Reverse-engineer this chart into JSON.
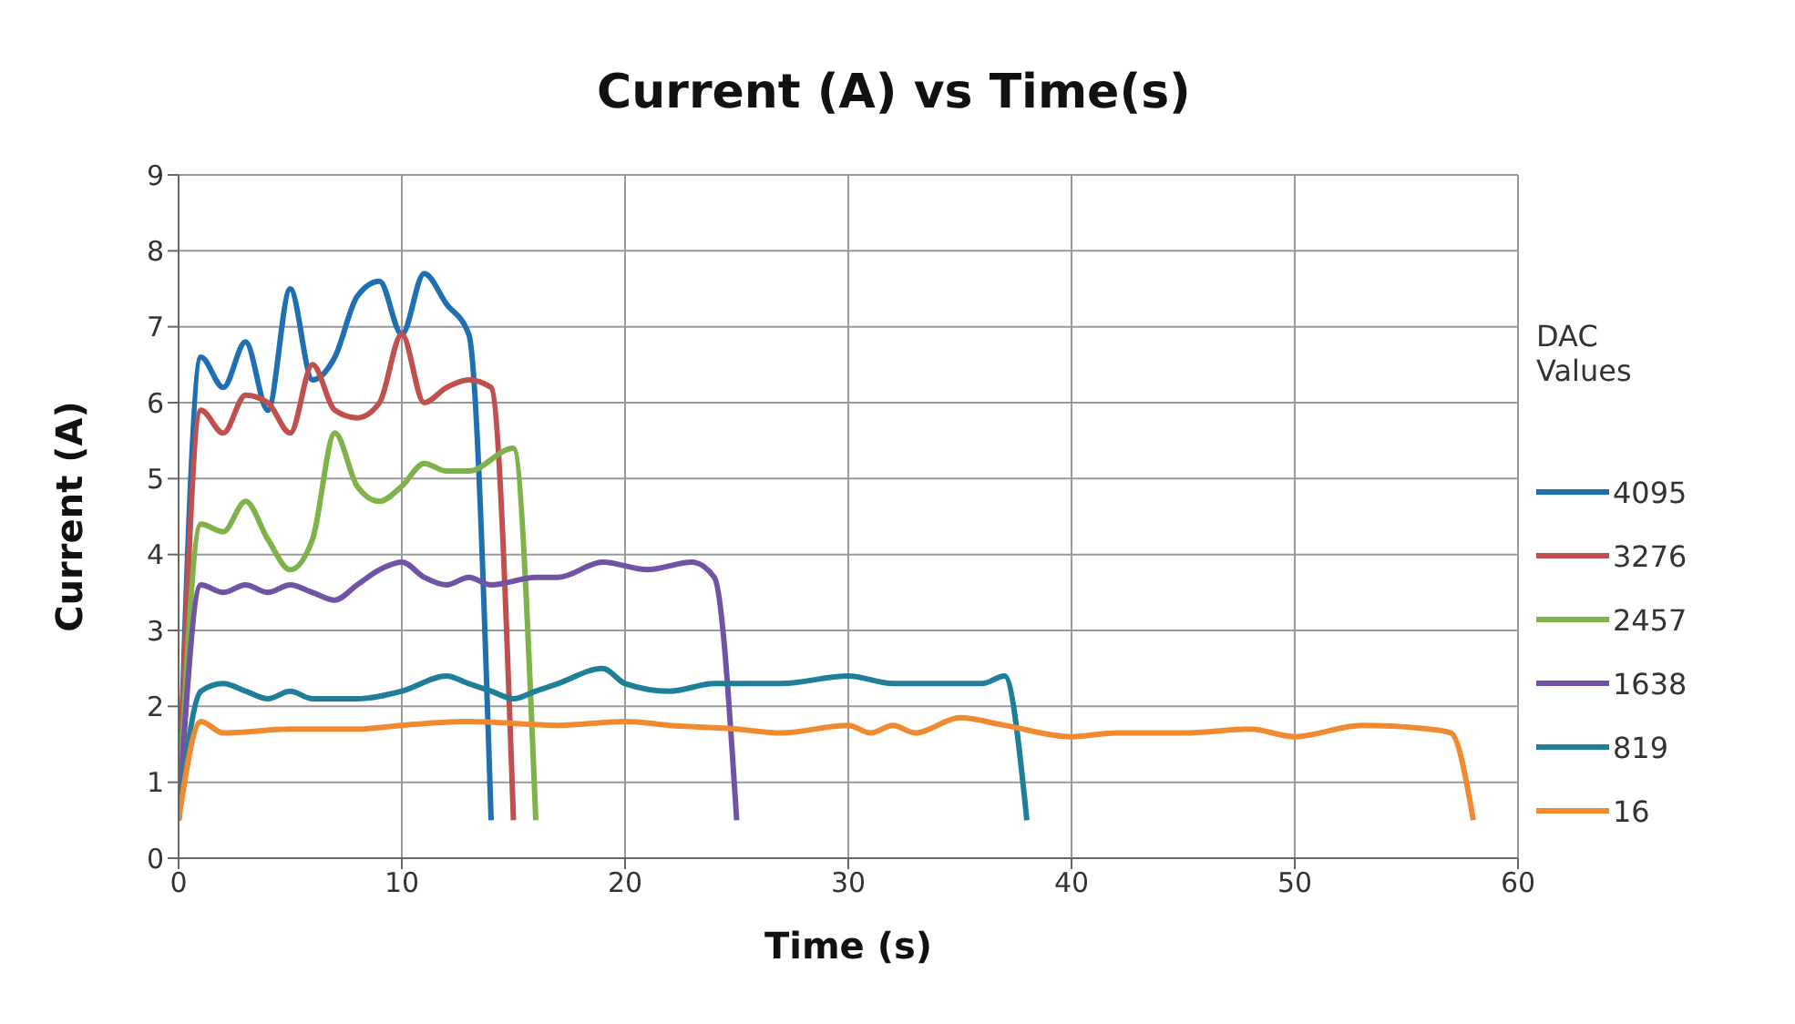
{
  "chart_data": {
    "type": "line",
    "title": "Current (A) vs Time(s)",
    "xlabel": "Time (s)",
    "ylabel": "Current (A)",
    "legend_title": "DAC Values",
    "xlim": [
      0,
      60
    ],
    "xticks": [
      0,
      10,
      20,
      30,
      40,
      50,
      60
    ],
    "ylim": [
      0,
      9
    ],
    "yticks": [
      0,
      1,
      2,
      3,
      4,
      5,
      6,
      7,
      8,
      9
    ],
    "grid": true,
    "legend": "right",
    "marker": "none",
    "line_style": "solid",
    "series": [
      {
        "name": "4095",
        "color": "#1f6fb2",
        "x": [
          0,
          1,
          2,
          3,
          4,
          5,
          6,
          7,
          8,
          9,
          10,
          11,
          12,
          13,
          14
        ],
        "values": [
          0.5,
          6.6,
          6.2,
          6.8,
          5.9,
          7.5,
          6.3,
          6.6,
          7.4,
          7.6,
          6.9,
          7.7,
          7.3,
          6.9,
          0.5
        ]
      },
      {
        "name": "3276",
        "color": "#c0504d",
        "x": [
          0,
          1,
          2,
          3,
          4,
          5,
          6,
          7,
          8,
          9,
          10,
          11,
          12,
          13,
          14,
          15
        ],
        "values": [
          0.5,
          5.9,
          5.6,
          6.1,
          6.0,
          5.6,
          6.5,
          5.9,
          5.8,
          6.0,
          6.9,
          6.0,
          6.2,
          6.3,
          6.2,
          0.5
        ]
      },
      {
        "name": "2457",
        "color": "#7fb24a",
        "x": [
          0,
          1,
          2,
          3,
          4,
          5,
          6,
          7,
          8,
          9,
          10,
          11,
          12,
          13,
          15,
          16
        ],
        "values": [
          0.5,
          4.4,
          4.3,
          4.7,
          4.2,
          3.8,
          4.2,
          5.6,
          4.9,
          4.7,
          4.9,
          5.2,
          5.1,
          5.1,
          5.4,
          0.5
        ]
      },
      {
        "name": "1638",
        "color": "#7153a6",
        "x": [
          0,
          1,
          2,
          3,
          4,
          5,
          6,
          7,
          8,
          9,
          10,
          11,
          12,
          13,
          14,
          16,
          17,
          19,
          21,
          23,
          24,
          25
        ],
        "values": [
          0.5,
          3.6,
          3.5,
          3.6,
          3.5,
          3.6,
          3.5,
          3.4,
          3.6,
          3.8,
          3.9,
          3.7,
          3.6,
          3.7,
          3.6,
          3.7,
          3.7,
          3.9,
          3.8,
          3.9,
          3.7,
          0.5
        ]
      },
      {
        "name": "819",
        "color": "#1f7f99",
        "x": [
          0,
          1,
          2,
          3,
          4,
          5,
          6,
          8,
          10,
          12,
          13,
          14,
          15,
          16,
          17,
          19,
          20,
          22,
          24,
          25,
          27,
          30,
          32,
          36,
          37,
          38
        ],
        "values": [
          0.5,
          2.2,
          2.3,
          2.2,
          2.1,
          2.2,
          2.1,
          2.1,
          2.2,
          2.4,
          2.3,
          2.2,
          2.1,
          2.2,
          2.3,
          2.5,
          2.3,
          2.2,
          2.3,
          2.3,
          2.3,
          2.4,
          2.3,
          2.3,
          2.4,
          0.5
        ]
      },
      {
        "name": "16",
        "color": "#f08a30",
        "x": [
          0,
          1,
          2,
          5,
          8,
          10,
          13,
          17,
          20,
          22,
          25,
          27,
          30,
          31,
          32,
          33,
          35,
          37,
          40,
          42,
          45,
          48,
          50,
          53,
          56,
          57,
          58
        ],
        "values": [
          0.5,
          1.8,
          1.65,
          1.7,
          1.7,
          1.75,
          1.8,
          1.75,
          1.8,
          1.75,
          1.7,
          1.65,
          1.75,
          1.65,
          1.75,
          1.65,
          1.85,
          1.75,
          1.6,
          1.65,
          1.65,
          1.7,
          1.6,
          1.75,
          1.7,
          1.65,
          0.5
        ]
      }
    ]
  }
}
